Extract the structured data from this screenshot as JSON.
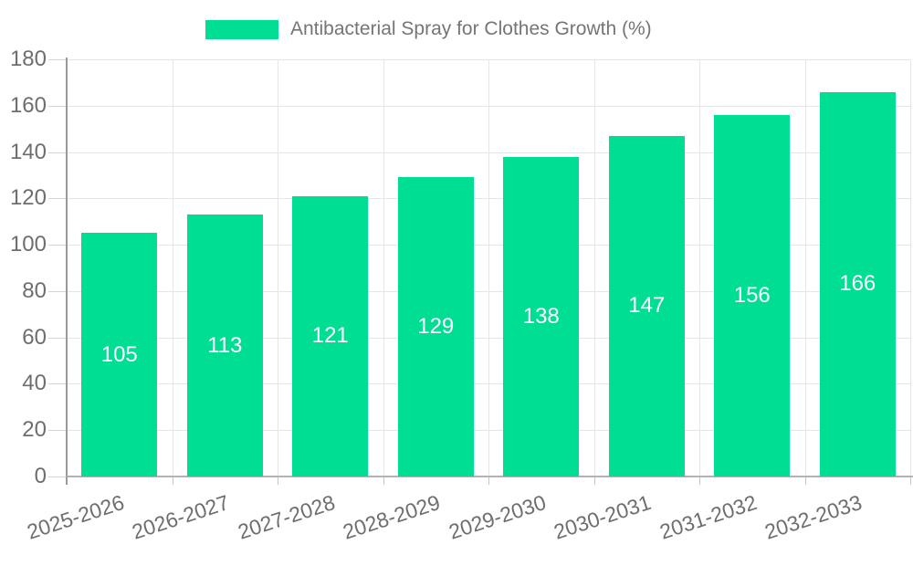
{
  "chart_data": {
    "type": "bar",
    "title": "",
    "categories": [
      "2025-2026",
      "2026-2027",
      "2027-2028",
      "2028-2029",
      "2029-2030",
      "2030-2031",
      "2031-2032",
      "2032-2033"
    ],
    "series": [
      {
        "name": "Antibacterial Spray for Clothes Growth (%)",
        "values": [
          105,
          113,
          121,
          129,
          138,
          147,
          156,
          166
        ],
        "color": "#00de94"
      }
    ],
    "xlabel": "",
    "ylabel": "",
    "ylim": [
      0,
      180
    ],
    "yticks": [
      0,
      20,
      40,
      60,
      80,
      100,
      120,
      140,
      160,
      180
    ],
    "grid": true,
    "legend_position": "top",
    "x_tick_rotation_deg": -18,
    "value_labels": {
      "show": true,
      "position": "inside-center"
    }
  },
  "style": {
    "bar_color": "#00de94",
    "value_label_color": "#ffffff",
    "legend_text_color": "#757575",
    "tick_label_color": "#6e6e6e",
    "grid_color": "#e6e6e6",
    "y_axis_line_color": "#9a9a9a",
    "x_axis_line_color": "#b3b3b3"
  }
}
